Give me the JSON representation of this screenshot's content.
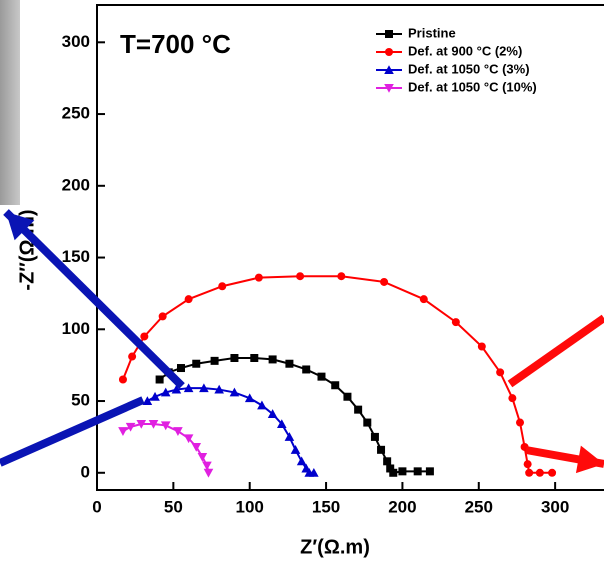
{
  "chart_data": {
    "type": "line",
    "annotation": "T=700 °C",
    "x_label": "Z′(Ω.m)",
    "y_label": "-Z″(Ω.m)",
    "xlim": [
      0,
      332
    ],
    "ylim": [
      -12,
      326
    ],
    "xticks": [
      0,
      50,
      100,
      150,
      200,
      250,
      300
    ],
    "yticks": [
      0,
      50,
      100,
      150,
      200,
      250,
      300
    ],
    "legend": "top-right",
    "series": [
      {
        "name": "Pristine",
        "color": "#000000",
        "marker": "square",
        "x": [
          41,
          47,
          55,
          65,
          77,
          90,
          103,
          115,
          126,
          137,
          147,
          156,
          164,
          171,
          177,
          182,
          186,
          190,
          192,
          194,
          200,
          210,
          218
        ],
        "values": [
          65,
          70,
          73,
          76,
          78,
          80,
          80,
          79,
          76,
          72,
          67,
          61,
          53,
          44,
          35,
          25,
          16,
          8,
          3,
          0,
          1,
          1,
          1
        ]
      },
      {
        "name": "Def. at 900 °C (2%)",
        "color": "#ff0000",
        "marker": "circle",
        "x": [
          17,
          23,
          31,
          43,
          60,
          82,
          106,
          133,
          160,
          188,
          214,
          235,
          252,
          264,
          272,
          277,
          280,
          282,
          283,
          290,
          298
        ],
        "values": [
          65,
          81,
          95,
          109,
          121,
          130,
          136,
          137,
          137,
          133,
          121,
          105,
          88,
          70,
          52,
          35,
          18,
          6,
          0,
          0,
          0
        ]
      },
      {
        "name": "Def. at 1050 °C (3%)",
        "color": "#0000cc",
        "marker": "triangle-up",
        "x": [
          33,
          38,
          45,
          52,
          60,
          70,
          80,
          90,
          100,
          108,
          115,
          121,
          126,
          130,
          134,
          137,
          139,
          142
        ],
        "values": [
          50,
          53,
          56,
          58,
          59,
          59,
          58,
          56,
          52,
          47,
          41,
          34,
          25,
          16,
          8,
          3,
          0,
          0
        ]
      },
      {
        "name": "Def. at 1050 °C (10%)",
        "color": "#e020e0",
        "marker": "triangle-down",
        "x": [
          17,
          22,
          29,
          37,
          45,
          53,
          60,
          65,
          69,
          72,
          73
        ],
        "values": [
          29,
          32,
          34,
          34,
          33,
          29,
          24,
          18,
          11,
          5,
          0
        ]
      }
    ]
  }
}
